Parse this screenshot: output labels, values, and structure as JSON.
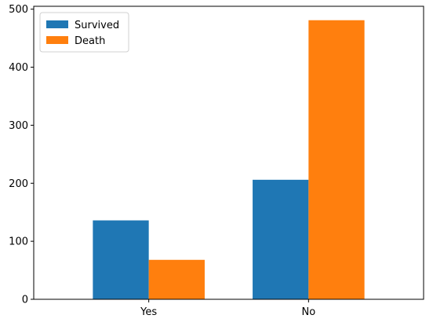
{
  "chart_data": {
    "type": "bar",
    "title": "",
    "xlabel": "",
    "ylabel": "",
    "categories": [
      "Yes",
      "No"
    ],
    "series": [
      {
        "name": "Survived",
        "color": "#1f77b4",
        "values": [
          136,
          206
        ]
      },
      {
        "name": "Death",
        "color": "#ff7f0e",
        "values": [
          68,
          481
        ]
      }
    ],
    "ylim": [
      0,
      505
    ],
    "yticks": [
      0,
      100,
      200,
      300,
      400,
      500
    ],
    "grid": false,
    "legend": {
      "placement": "top-left",
      "entries": [
        "Survived",
        "Death"
      ]
    }
  }
}
